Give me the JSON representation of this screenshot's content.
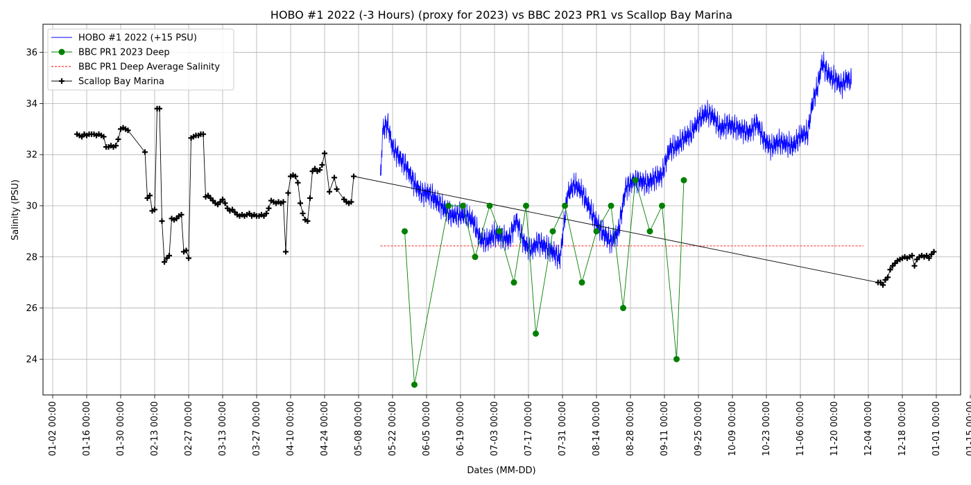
{
  "chart_data": {
    "type": "line",
    "title": "HOBO #1 2022 (-3 Hours) (proxy for 2023) vs BBC 2023 PR1 vs Scallop Bay Marina",
    "xlabel": "Dates (MM-DD)",
    "ylabel": "Salinity (PSU)",
    "x_ticks": [
      "01-02 00:00",
      "01-16 00:00",
      "01-30 00:00",
      "02-13 00:00",
      "02-27 00:00",
      "03-13 00:00",
      "03-27 00:00",
      "04-10 00:00",
      "04-24 00:00",
      "05-08 00:00",
      "05-22 00:00",
      "06-05 00:00",
      "06-19 00:00",
      "07-03 00:00",
      "07-17 00:00",
      "07-31 00:00",
      "08-14 00:00",
      "08-28 00:00",
      "09-11 00:00",
      "09-25 00:00",
      "10-09 00:00",
      "10-23 00:00",
      "11-06 00:00",
      "11-20 00:00",
      "12-04 00:00",
      "12-18 00:00",
      "01-01 00:00",
      "01-15 00:00"
    ],
    "y_ticks": [
      "24",
      "26",
      "28",
      "30",
      "32",
      "34",
      "36"
    ],
    "xlim_days": [
      -4,
      374
    ],
    "ylim": [
      22.6,
      37.1
    ],
    "grid": true,
    "legend_position": "top-left",
    "series": [
      {
        "name": "HOBO #1 2022 (+15 PSU)",
        "color": "#0000ff",
        "marker": "none",
        "trend": [
          [
            135,
            31.0
          ],
          [
            136,
            33.0
          ],
          [
            138,
            33.2
          ],
          [
            140,
            32.3
          ],
          [
            143,
            31.9
          ],
          [
            146,
            31.5
          ],
          [
            149,
            30.9
          ],
          [
            152,
            30.5
          ],
          [
            155,
            30.5
          ],
          [
            158,
            30.2
          ],
          [
            161,
            29.9
          ],
          [
            164,
            29.6
          ],
          [
            167,
            29.6
          ],
          [
            170,
            29.6
          ],
          [
            173,
            29.4
          ],
          [
            176,
            28.7
          ],
          [
            179,
            28.6
          ],
          [
            182,
            28.9
          ],
          [
            185,
            28.8
          ],
          [
            188,
            28.7
          ],
          [
            191,
            29.5
          ],
          [
            194,
            28.6
          ],
          [
            197,
            28.3
          ],
          [
            200,
            28.6
          ],
          [
            203,
            28.4
          ],
          [
            206,
            28.2
          ],
          [
            209,
            27.9
          ],
          [
            212,
            30.4
          ],
          [
            215,
            30.8
          ],
          [
            218,
            30.5
          ],
          [
            221,
            29.9
          ],
          [
            224,
            29.3
          ],
          [
            227,
            28.9
          ],
          [
            230,
            28.6
          ],
          [
            233,
            29.0
          ],
          [
            236,
            30.7
          ],
          [
            239,
            31.0
          ],
          [
            242,
            31.0
          ],
          [
            245,
            30.9
          ],
          [
            248,
            31.1
          ],
          [
            251,
            31.2
          ],
          [
            254,
            32.2
          ],
          [
            257,
            32.3
          ],
          [
            260,
            32.6
          ],
          [
            263,
            32.8
          ],
          [
            266,
            33.3
          ],
          [
            269,
            33.6
          ],
          [
            272,
            33.5
          ],
          [
            275,
            33.0
          ],
          [
            278,
            33.2
          ],
          [
            281,
            33.1
          ],
          [
            284,
            33.0
          ],
          [
            287,
            32.9
          ],
          [
            290,
            33.3
          ],
          [
            293,
            32.6
          ],
          [
            296,
            32.3
          ],
          [
            299,
            32.5
          ],
          [
            302,
            32.4
          ],
          [
            305,
            32.3
          ],
          [
            308,
            32.7
          ],
          [
            311,
            32.8
          ],
          [
            313,
            34.0
          ],
          [
            315,
            34.6
          ],
          [
            317,
            35.6
          ],
          [
            319,
            35.2
          ],
          [
            321,
            35.0
          ],
          [
            323,
            34.9
          ],
          [
            325,
            34.7
          ],
          [
            327,
            35.0
          ],
          [
            329,
            34.9
          ]
        ],
        "noise_amplitude": 0.6,
        "y_range_observed": [
          27.0,
          36.4
        ]
      },
      {
        "name": "BBC PR1 2023 Deep",
        "color": "#008000",
        "marker": "circle",
        "points": [
          [
            145,
            29.0
          ],
          [
            149,
            23.0
          ],
          [
            163,
            30.0
          ],
          [
            169,
            30.0
          ],
          [
            174,
            28.0
          ],
          [
            180,
            30.0
          ],
          [
            184,
            29.0
          ],
          [
            190,
            27.0
          ],
          [
            195,
            30.0
          ],
          [
            199,
            25.0
          ],
          [
            206,
            29.0
          ],
          [
            211,
            30.0
          ],
          [
            218,
            27.0
          ],
          [
            224,
            29.0
          ],
          [
            230,
            30.0
          ],
          [
            235,
            26.0
          ],
          [
            240,
            31.0
          ],
          [
            246,
            29.0
          ],
          [
            251,
            30.0
          ],
          [
            257,
            24.0
          ],
          [
            260,
            31.0
          ]
        ]
      },
      {
        "name": "BBC PR1 Deep Average Salinity",
        "color": "#ff0000",
        "marker": "none",
        "style": "dashed",
        "value": 28.43,
        "x_range": [
          135,
          334
        ]
      },
      {
        "name": "Scallop Bay Marina",
        "color": "#000000",
        "marker": "plus",
        "points": [
          [
            10,
            32.8
          ],
          [
            11,
            32.75
          ],
          [
            12,
            32.7
          ],
          [
            13,
            32.8
          ],
          [
            14,
            32.75
          ],
          [
            15,
            32.8
          ],
          [
            16,
            32.8
          ],
          [
            17,
            32.8
          ],
          [
            18,
            32.75
          ],
          [
            19,
            32.8
          ],
          [
            20,
            32.75
          ],
          [
            21,
            32.7
          ],
          [
            22,
            32.3
          ],
          [
            23,
            32.3
          ],
          [
            24,
            32.35
          ],
          [
            25,
            32.3
          ],
          [
            26,
            32.35
          ],
          [
            27,
            32.6
          ],
          [
            28,
            33.0
          ],
          [
            29,
            33.05
          ],
          [
            30,
            33.0
          ],
          [
            31,
            32.95
          ],
          [
            38,
            32.1
          ],
          [
            39,
            30.3
          ],
          [
            40,
            30.4
          ],
          [
            41,
            29.8
          ],
          [
            42,
            29.85
          ],
          [
            43,
            33.8
          ],
          [
            44,
            33.8
          ],
          [
            45,
            29.4
          ],
          [
            46,
            27.8
          ],
          [
            47,
            27.95
          ],
          [
            48,
            28.05
          ],
          [
            49,
            29.5
          ],
          [
            50,
            29.45
          ],
          [
            51,
            29.5
          ],
          [
            52,
            29.6
          ],
          [
            53,
            29.65
          ],
          [
            54,
            28.2
          ],
          [
            55,
            28.25
          ],
          [
            56,
            27.95
          ],
          [
            57,
            32.65
          ],
          [
            58,
            32.7
          ],
          [
            59,
            32.75
          ],
          [
            60,
            32.75
          ],
          [
            61,
            32.8
          ],
          [
            62,
            32.8
          ],
          [
            63,
            30.35
          ],
          [
            64,
            30.4
          ],
          [
            65,
            30.3
          ],
          [
            66,
            30.2
          ],
          [
            67,
            30.1
          ],
          [
            68,
            30.05
          ],
          [
            69,
            30.15
          ],
          [
            70,
            30.25
          ],
          [
            71,
            30.1
          ],
          [
            72,
            29.9
          ],
          [
            73,
            29.8
          ],
          [
            74,
            29.85
          ],
          [
            75,
            29.75
          ],
          [
            76,
            29.65
          ],
          [
            77,
            29.6
          ],
          [
            78,
            29.65
          ],
          [
            79,
            29.6
          ],
          [
            80,
            29.65
          ],
          [
            81,
            29.7
          ],
          [
            82,
            29.6
          ],
          [
            83,
            29.65
          ],
          [
            84,
            29.6
          ],
          [
            85,
            29.6
          ],
          [
            86,
            29.65
          ],
          [
            87,
            29.6
          ],
          [
            88,
            29.7
          ],
          [
            89,
            29.9
          ],
          [
            90,
            30.2
          ],
          [
            91,
            30.15
          ],
          [
            92,
            30.1
          ],
          [
            93,
            30.15
          ],
          [
            94,
            30.1
          ],
          [
            95,
            30.15
          ],
          [
            96,
            28.2
          ],
          [
            97,
            30.5
          ],
          [
            98,
            31.15
          ],
          [
            99,
            31.2
          ],
          [
            100,
            31.15
          ],
          [
            101,
            30.9
          ],
          [
            102,
            30.1
          ],
          [
            103,
            29.7
          ],
          [
            104,
            29.45
          ],
          [
            105,
            29.4
          ],
          [
            106,
            30.3
          ],
          [
            107,
            31.35
          ],
          [
            108,
            31.45
          ],
          [
            109,
            31.35
          ],
          [
            110,
            31.4
          ],
          [
            111,
            31.6
          ],
          [
            112,
            32.05
          ],
          [
            114,
            30.55
          ],
          [
            116,
            31.1
          ],
          [
            117,
            30.65
          ],
          [
            120,
            30.25
          ],
          [
            121,
            30.15
          ],
          [
            122,
            30.1
          ],
          [
            123,
            30.15
          ],
          [
            124,
            31.15
          ],
          [
            340,
            27.0
          ],
          [
            341,
            27.0
          ],
          [
            342,
            26.9
          ],
          [
            343,
            27.1
          ],
          [
            344,
            27.2
          ],
          [
            345,
            27.5
          ],
          [
            346,
            27.65
          ],
          [
            347,
            27.75
          ],
          [
            348,
            27.85
          ],
          [
            349,
            27.9
          ],
          [
            350,
            27.95
          ],
          [
            351,
            28.0
          ],
          [
            352,
            27.95
          ],
          [
            353,
            28.0
          ],
          [
            354,
            28.05
          ],
          [
            355,
            27.65
          ],
          [
            356,
            27.9
          ],
          [
            357,
            28.0
          ],
          [
            358,
            28.05
          ],
          [
            359,
            28.0
          ],
          [
            360,
            28.05
          ],
          [
            361,
            27.95
          ],
          [
            362,
            28.1
          ],
          [
            363,
            28.2
          ]
        ]
      }
    ]
  }
}
